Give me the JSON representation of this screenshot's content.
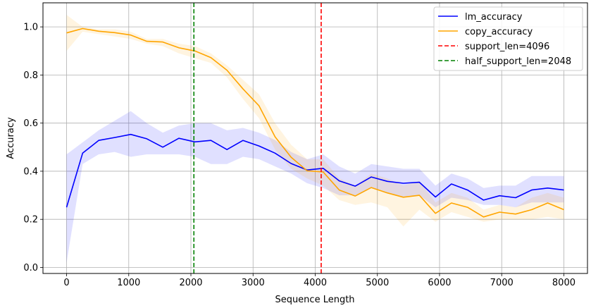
{
  "chart_data": {
    "type": "line",
    "xlabel": "Sequence Length",
    "ylabel": "Accuracy",
    "xlim": [
      -380,
      8380
    ],
    "ylim": [
      -0.025,
      1.1
    ],
    "xticks": [
      0,
      1000,
      2000,
      3000,
      4000,
      5000,
      6000,
      7000,
      8000
    ],
    "yticks": [
      0.0,
      0.2,
      0.4,
      0.6,
      0.8,
      1.0
    ],
    "xtick_labels": [
      "0",
      "1000",
      "2000",
      "3000",
      "4000",
      "5000",
      "6000",
      "7000",
      "8000"
    ],
    "ytick_labels": [
      "0.0",
      "0.2",
      "0.4",
      "0.6",
      "0.8",
      "1.0"
    ],
    "grid": true,
    "legend_position": "top-right",
    "x": [
      0,
      258,
      516,
      774,
      1032,
      1290,
      1548,
      1806,
      2064,
      2322,
      2580,
      2838,
      3096,
      3354,
      3612,
      3870,
      4128,
      4386,
      4644,
      4902,
      5160,
      5418,
      5676,
      5934,
      6192,
      6450,
      6708,
      6966,
      7224,
      7482,
      7740,
      8000
    ],
    "series": [
      {
        "name": "lm_accuracy",
        "color": "#0000ff",
        "values": [
          0.25,
          0.475,
          0.528,
          0.54,
          0.553,
          0.535,
          0.5,
          0.537,
          0.522,
          0.528,
          0.49,
          0.528,
          0.505,
          0.475,
          0.432,
          0.405,
          0.412,
          0.36,
          0.338,
          0.376,
          0.358,
          0.35,
          0.354,
          0.293,
          0.347,
          0.322,
          0.28,
          0.298,
          0.29,
          0.322,
          0.33,
          0.322
        ],
        "lower": [
          0.02,
          0.43,
          0.47,
          0.48,
          0.46,
          0.47,
          0.47,
          0.47,
          0.46,
          0.43,
          0.43,
          0.46,
          0.45,
          0.42,
          0.39,
          0.35,
          0.33,
          0.3,
          0.3,
          0.33,
          0.31,
          0.29,
          0.3,
          0.25,
          0.29,
          0.28,
          0.26,
          0.26,
          0.25,
          0.27,
          0.27,
          0.27
        ],
        "upper": [
          0.47,
          0.52,
          0.57,
          0.61,
          0.65,
          0.6,
          0.56,
          0.59,
          0.6,
          0.6,
          0.57,
          0.58,
          0.56,
          0.53,
          0.48,
          0.45,
          0.47,
          0.42,
          0.39,
          0.43,
          0.42,
          0.41,
          0.41,
          0.34,
          0.39,
          0.37,
          0.33,
          0.34,
          0.34,
          0.38,
          0.38,
          0.38
        ]
      },
      {
        "name": "copy_accuracy",
        "color": "#ffa500",
        "values": [
          0.975,
          0.993,
          0.982,
          0.976,
          0.966,
          0.94,
          0.937,
          0.913,
          0.9,
          0.872,
          0.82,
          0.742,
          0.672,
          0.543,
          0.458,
          0.402,
          0.397,
          0.322,
          0.297,
          0.332,
          0.31,
          0.292,
          0.3,
          0.225,
          0.268,
          0.25,
          0.21,
          0.23,
          0.222,
          0.24,
          0.268,
          0.24
        ],
        "lower": [
          0.9,
          0.98,
          0.97,
          0.96,
          0.95,
          0.93,
          0.92,
          0.89,
          0.87,
          0.85,
          0.79,
          0.7,
          0.62,
          0.49,
          0.41,
          0.37,
          0.34,
          0.28,
          0.26,
          0.27,
          0.25,
          0.17,
          0.24,
          0.19,
          0.23,
          0.21,
          0.19,
          0.2,
          0.2,
          0.2,
          0.21,
          0.2
        ],
        "upper": [
          1.05,
          1.0,
          0.99,
          0.99,
          0.98,
          0.95,
          0.95,
          0.93,
          0.92,
          0.89,
          0.84,
          0.78,
          0.72,
          0.6,
          0.51,
          0.45,
          0.45,
          0.37,
          0.34,
          0.39,
          0.37,
          0.34,
          0.36,
          0.27,
          0.31,
          0.29,
          0.24,
          0.26,
          0.25,
          0.29,
          0.31,
          0.29
        ]
      }
    ],
    "vlines": [
      {
        "name": "support_len=4096",
        "x": 4096,
        "color": "#ff0000",
        "style": "dashed"
      },
      {
        "name": "half_support_len=2048",
        "x": 2048,
        "color": "#008000",
        "style": "dashed"
      }
    ],
    "legend": [
      "lm_accuracy",
      "copy_accuracy",
      "support_len=4096",
      "half_support_len=2048"
    ]
  }
}
